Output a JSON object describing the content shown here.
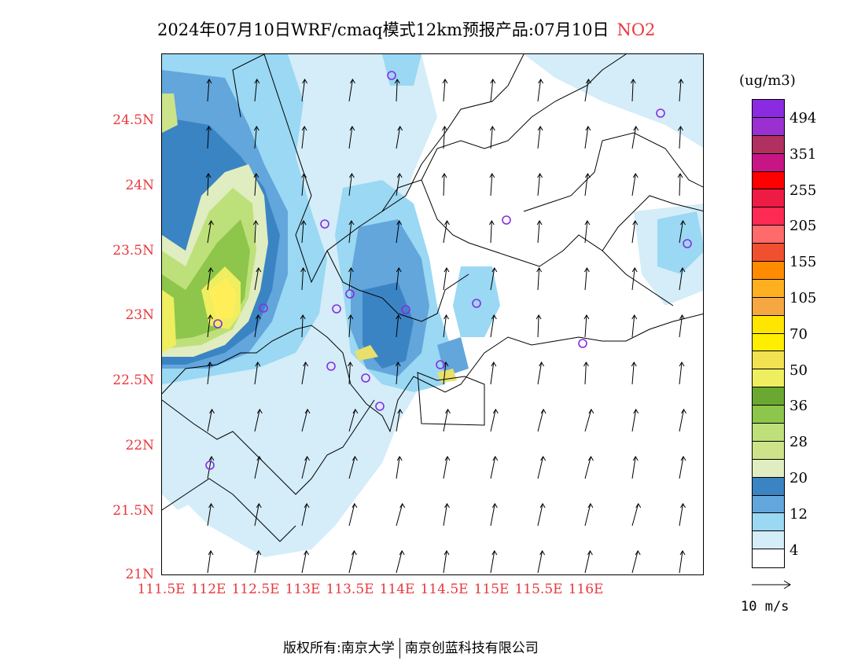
{
  "header": {
    "title": "2024年07月10日WRF/cmaq模式12km预报产品:07月10日",
    "species": "NO2"
  },
  "axes": {
    "y_ticks": [
      "24.5N",
      "24N",
      "23.5N",
      "23N",
      "22.5N",
      "22N",
      "21.5N",
      "21N"
    ],
    "x_ticks": [
      "111.5E",
      "112E",
      "112.5E",
      "113E",
      "113.5E",
      "114E",
      "114.5E",
      "115E",
      "115.5E",
      "116E"
    ]
  },
  "colorbar": {
    "unit": "(ug/m3)",
    "labels": [
      "494",
      "351",
      "255",
      "205",
      "155",
      "105",
      "70",
      "50",
      "36",
      "28",
      "20",
      "12",
      "4"
    ],
    "colors": [
      "#8a2be2",
      "#9b30d0",
      "#b03060",
      "#c71585",
      "#ff0000",
      "#ee1c44",
      "#ff2a54",
      "#ff6a6a",
      "#f05030",
      "#ff8c00",
      "#ffb020",
      "#f5a742",
      "#ffe600",
      "#ffee00",
      "#f2e150",
      "#eeee60",
      "#6aa832",
      "#8dc64a",
      "#bee07a",
      "#cde38a",
      "#e0edc0",
      "#3b84c4",
      "#62a6dc",
      "#9ad8f3",
      "#d4edf8",
      "#ffffff"
    ]
  },
  "reference_vector": {
    "label": "10  m/s"
  },
  "footer": {
    "left": "版权所有:南京大学",
    "right": "南京创蓝科技有限公司"
  }
}
